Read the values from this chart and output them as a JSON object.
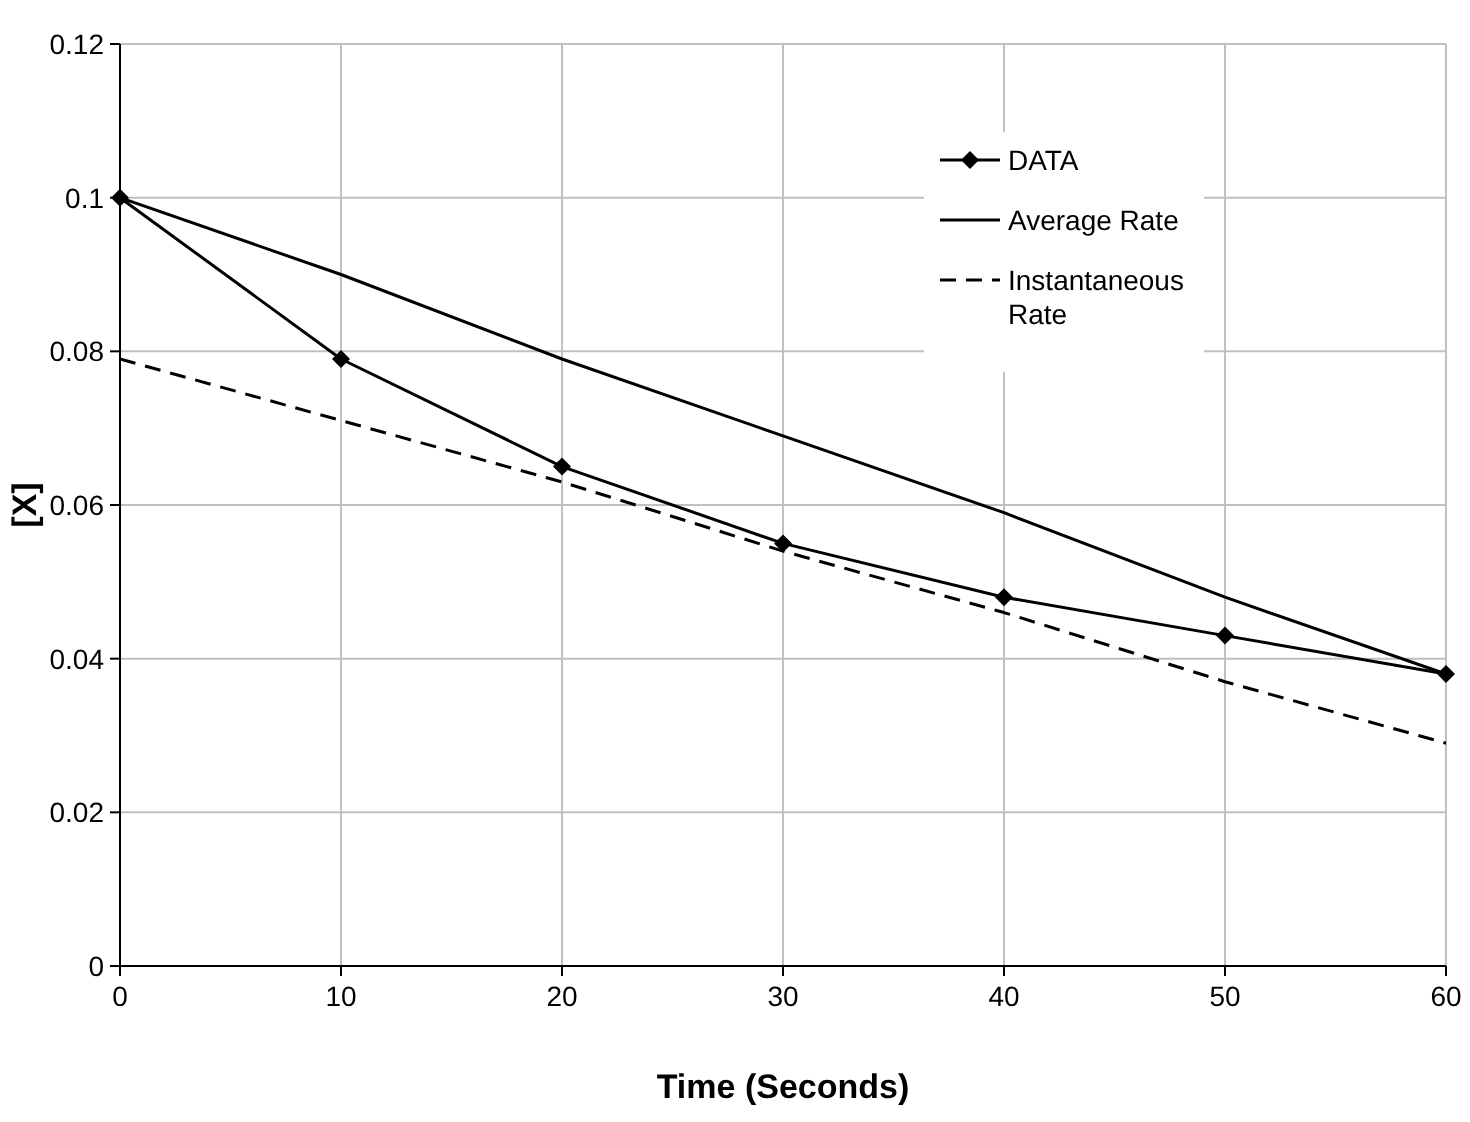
{
  "chart_data": {
    "type": "line",
    "xlabel": "Time (Seconds)",
    "ylabel": "[X]",
    "x": [
      0,
      10,
      20,
      30,
      40,
      50,
      60
    ],
    "series": [
      {
        "name": "DATA",
        "color": "#000000",
        "values": [
          0.1,
          0.079,
          0.065,
          0.055,
          0.048,
          0.043,
          0.038
        ],
        "marker": "diamond",
        "line_style": "solid"
      },
      {
        "name": "Average Rate",
        "color": "#000000",
        "values": [
          0.1,
          0.09,
          0.079,
          0.069,
          0.059,
          0.048,
          0.038
        ],
        "marker": "none",
        "line_style": "solid"
      },
      {
        "name": "Instantaneous Rate",
        "color": "#000000",
        "values": [
          0.079,
          0.071,
          0.063,
          0.054,
          0.046,
          0.037,
          0.029
        ],
        "marker": "none",
        "line_style": "dashed"
      }
    ],
    "xlim": [
      0,
      60
    ],
    "xticks": [
      0,
      10,
      20,
      30,
      40,
      50,
      60
    ],
    "ylim": [
      0,
      0.12
    ],
    "yticks": [
      0,
      {
        "value": 0.02,
        "label": "0.02"
      },
      {
        "value": 0.04,
        "label": "0.04"
      },
      {
        "value": 0.06,
        "label": "0.06"
      },
      {
        "value": 0.08,
        "label": "0.08"
      },
      {
        "value": 0.1,
        "label": "0.1"
      },
      {
        "value": 0.12,
        "label": "0.12"
      }
    ],
    "grid": true,
    "legend": "top right"
  }
}
